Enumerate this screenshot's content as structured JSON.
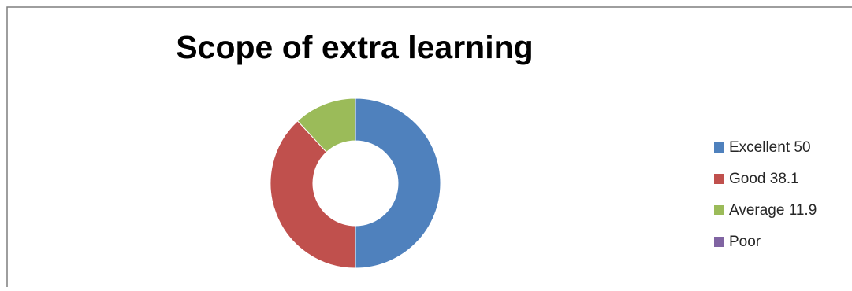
{
  "chart_data": {
    "type": "pie",
    "title": "Scope of extra learning",
    "categories": [
      "Excellent 50",
      "Good 38.1",
      "Average 11.9",
      "Poor"
    ],
    "values": [
      50,
      38.1,
      11.9,
      0
    ],
    "colors": [
      "#4f81bd",
      "#c0504d",
      "#9bbb59",
      "#8064a2"
    ],
    "legend_position": "right",
    "style": "doughnut"
  }
}
